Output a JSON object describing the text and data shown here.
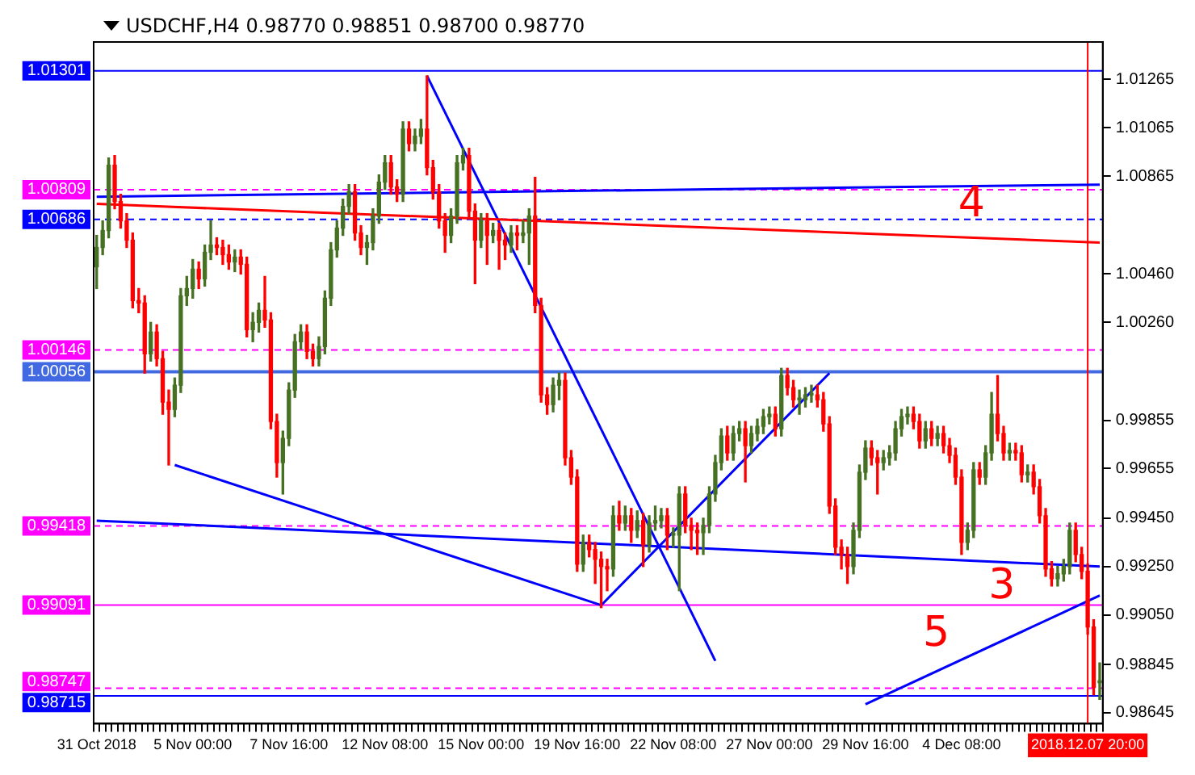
{
  "chart_data": {
    "type": "candlestick",
    "title": "USDCHF,H4  0.98770 0.98851 0.98700 0.98770",
    "categories": [
      "31 Oct 2018",
      null,
      null,
      null,
      null,
      null,
      null,
      null,
      null,
      null,
      null,
      null,
      null,
      null,
      null,
      null,
      "5 Nov 00:00",
      null,
      null,
      null,
      null,
      null,
      null,
      null,
      null,
      null,
      null,
      null,
      null,
      null,
      null,
      null,
      "7 Nov 16:00",
      null,
      null,
      null,
      null,
      null,
      null,
      null,
      null,
      null,
      null,
      null,
      null,
      null,
      null,
      null,
      "12 Nov 08:00",
      null,
      null,
      null,
      null,
      null,
      null,
      null,
      null,
      null,
      null,
      null,
      null,
      null,
      null,
      null,
      "15 Nov 00:00",
      null,
      null,
      null,
      null,
      null,
      null,
      null,
      null,
      null,
      null,
      null,
      null,
      null,
      null,
      null,
      "19 Nov 16:00",
      null,
      null,
      null,
      null,
      null,
      null,
      null,
      null,
      null,
      null,
      null,
      null,
      null,
      null,
      null,
      "22 Nov 08:00",
      null,
      null,
      null,
      null,
      null,
      null,
      null,
      null,
      null,
      null,
      null,
      null,
      null,
      null,
      null,
      "27 Nov 00:00",
      null,
      null,
      null,
      null,
      null,
      null,
      null,
      null,
      null,
      null,
      null,
      null,
      null,
      null,
      null,
      "29 Nov 16:00",
      null,
      null,
      null,
      null,
      null,
      null,
      null,
      null,
      null,
      null,
      null,
      null,
      null,
      null,
      null,
      "4 Dec 08:00",
      null,
      null,
      null,
      null,
      null,
      null,
      null,
      null,
      null,
      null,
      null,
      null,
      null,
      null,
      null,
      null,
      null,
      null,
      null,
      null,
      "2018.12.07 20:00",
      null,
      null
    ],
    "ohlc": [
      [
        1.0049,
        1.0062,
        1.004,
        1.0057
      ],
      [
        1.0057,
        1.0068,
        1.0054,
        1.0064
      ],
      [
        1.0064,
        1.0094,
        1.0061,
        1.0091
      ],
      [
        1.0091,
        1.0095,
        1.0073,
        1.0076
      ],
      [
        1.0076,
        1.0079,
        1.0065,
        1.0068
      ],
      [
        1.0068,
        1.0071,
        1.0057,
        1.006
      ],
      [
        1.006,
        1.0063,
        1.0032,
        1.0035
      ],
      [
        1.0035,
        1.004,
        1.003,
        1.0034
      ],
      [
        1.0034,
        1.0037,
        1.0005,
        1.0013
      ],
      [
        1.0013,
        1.0026,
        1.001,
        1.0022
      ],
      [
        1.0022,
        1.0025,
        1.0008,
        1.0011
      ],
      [
        1.0011,
        1.0014,
        0.9988,
        0.9993
      ],
      [
        0.9993,
        0.9998,
        0.9967,
        0.999
      ],
      [
        0.999,
        1.0003,
        0.9987,
        1.0
      ],
      [
        1.0,
        1.004,
        0.9997,
        1.0037
      ],
      [
        1.0037,
        1.0045,
        1.0033,
        1.004
      ],
      [
        1.004,
        1.0052,
        1.0036,
        1.0048
      ],
      [
        1.0048,
        1.0051,
        1.004,
        1.0044
      ],
      [
        1.0044,
        1.0058,
        1.0041,
        1.0055
      ],
      [
        1.0055,
        1.0068,
        1.0052,
        1.0058
      ],
      [
        1.0058,
        1.0061,
        1.0054,
        1.0057
      ],
      [
        1.0057,
        1.006,
        1.005,
        1.0054
      ],
      [
        1.0054,
        1.0058,
        1.0048,
        1.0051
      ],
      [
        1.0051,
        1.0056,
        1.0047,
        1.0053
      ],
      [
        1.0053,
        1.0056,
        1.0046,
        1.005
      ],
      [
        1.005,
        1.0053,
        1.002,
        1.0023
      ],
      [
        1.0023,
        1.003,
        1.0018,
        1.0026
      ],
      [
        1.0026,
        1.0034,
        1.0022,
        1.0031
      ],
      [
        1.0031,
        1.0045,
        1.0024,
        1.0027
      ],
      [
        1.0027,
        1.003,
        0.9982,
        0.9985
      ],
      [
        0.9985,
        0.9988,
        0.9962,
        0.9968
      ],
      [
        0.9968,
        0.9981,
        0.9955,
        0.9978
      ],
      [
        0.9978,
        1.0001,
        0.9975,
        0.9998
      ],
      [
        0.9998,
        1.0021,
        0.9995,
        1.0018
      ],
      [
        1.0018,
        1.0025,
        1.0015,
        1.0022
      ],
      [
        1.0022,
        1.0025,
        1.0011,
        1.0014
      ],
      [
        1.0014,
        1.0017,
        1.0008,
        1.0011
      ],
      [
        1.0011,
        1.002,
        1.0008,
        1.0016
      ],
      [
        1.0016,
        1.0039,
        1.0013,
        1.0036
      ],
      [
        1.0036,
        1.0059,
        1.0033,
        1.0056
      ],
      [
        1.0056,
        1.0068,
        1.0053,
        1.0065
      ],
      [
        1.0065,
        1.0077,
        1.0062,
        1.0074
      ],
      [
        1.0074,
        1.0083,
        1.0071,
        1.008
      ],
      [
        1.008,
        1.0083,
        1.006,
        1.0063
      ],
      [
        1.0063,
        1.0066,
        1.0054,
        1.0057
      ],
      [
        1.0057,
        1.0062,
        1.005,
        1.0059
      ],
      [
        1.0059,
        1.0073,
        1.0056,
        1.007
      ],
      [
        1.007,
        1.0087,
        1.0067,
        1.0084
      ],
      [
        1.0084,
        1.0095,
        1.0081,
        1.0092
      ],
      [
        1.0092,
        1.0095,
        1.0079,
        1.0082
      ],
      [
        1.0082,
        1.0085,
        1.0076,
        1.0079
      ],
      [
        1.0079,
        1.0109,
        1.0076,
        1.0106
      ],
      [
        1.0106,
        1.0109,
        1.0097,
        1.01
      ],
      [
        1.01,
        1.0106,
        1.0097,
        1.0103
      ],
      [
        1.0103,
        1.011,
        1.01,
        1.0106
      ],
      [
        1.0106,
        1.0128,
        1.0087,
        1.009
      ],
      [
        1.009,
        1.0093,
        1.0077,
        1.008
      ],
      [
        1.008,
        1.0083,
        1.0065,
        1.0068
      ],
      [
        1.0068,
        1.0071,
        1.0055,
        1.0062
      ],
      [
        1.0062,
        1.0073,
        1.0059,
        1.007
      ],
      [
        1.007,
        1.0095,
        1.0067,
        1.0092
      ],
      [
        1.0092,
        1.0098,
        1.0089,
        1.0095
      ],
      [
        1.0095,
        1.0098,
        1.0069,
        1.0072
      ],
      [
        1.0072,
        1.0075,
        1.0042,
        1.006
      ],
      [
        1.006,
        1.0071,
        1.0057,
        1.0068
      ],
      [
        1.0068,
        1.0071,
        1.005,
        1.0062
      ],
      [
        1.0062,
        1.0067,
        1.0059,
        1.0064
      ],
      [
        1.0064,
        1.0067,
        1.0048,
        1.006
      ],
      [
        1.006,
        1.0063,
        1.0052,
        1.0058
      ],
      [
        1.0058,
        1.0066,
        1.0055,
        1.0063
      ],
      [
        1.0063,
        1.0066,
        1.0056,
        1.0062
      ],
      [
        1.0062,
        1.0068,
        1.0059,
        1.0063
      ],
      [
        1.0063,
        1.0073,
        1.005,
        1.007
      ],
      [
        1.007,
        1.0086,
        1.003,
        1.0033
      ],
      [
        1.0033,
        1.0036,
        0.9993,
        0.9996
      ],
      [
        0.9996,
        0.9999,
        0.9988,
        0.9992
      ],
      [
        0.9992,
        1.0003,
        0.9989,
        1.0
      ],
      [
        1.0,
        1.0005,
        0.9994,
        1.0002
      ],
      [
        1.0002,
        1.0005,
        0.9967,
        0.997
      ],
      [
        0.997,
        0.9973,
        0.9959,
        0.9962
      ],
      [
        0.9962,
        0.9965,
        0.9923,
        0.9926
      ],
      [
        0.9926,
        0.9938,
        0.9923,
        0.9935
      ],
      [
        0.9935,
        0.9938,
        0.9929,
        0.9932
      ],
      [
        0.9932,
        0.9935,
        0.9918,
        0.9928
      ],
      [
        0.9928,
        0.9931,
        0.9908,
        0.9925
      ],
      [
        0.9925,
        0.9928,
        0.9915,
        0.9924
      ],
      [
        0.9924,
        0.995,
        0.9921,
        0.9946
      ],
      [
        0.9946,
        0.9952,
        0.994,
        0.9943
      ],
      [
        0.9943,
        0.995,
        0.994,
        0.9946
      ],
      [
        0.9946,
        0.9949,
        0.9935,
        0.994
      ],
      [
        0.994,
        0.9948,
        0.9937,
        0.9944
      ],
      [
        0.9944,
        0.9947,
        0.9925,
        0.9934
      ],
      [
        0.9934,
        0.9946,
        0.9931,
        0.9943
      ],
      [
        0.9943,
        0.995,
        0.994,
        0.9944
      ],
      [
        0.9944,
        0.9949,
        0.9941,
        0.9946
      ],
      [
        0.9946,
        0.9949,
        0.9932,
        0.9938
      ],
      [
        0.9938,
        0.9941,
        0.9933,
        0.9938
      ],
      [
        0.9938,
        0.9958,
        0.9915,
        0.9955
      ],
      [
        0.9955,
        0.9958,
        0.9939,
        0.9942
      ],
      [
        0.9942,
        0.9945,
        0.9932,
        0.994
      ],
      [
        0.994,
        0.9943,
        0.993,
        0.9939
      ],
      [
        0.9939,
        0.9945,
        0.993,
        0.9942
      ],
      [
        0.9942,
        0.9958,
        0.9939,
        0.9955
      ],
      [
        0.9955,
        0.9971,
        0.9952,
        0.9968
      ],
      [
        0.9968,
        0.9982,
        0.9965,
        0.9979
      ],
      [
        0.9979,
        0.9983,
        0.9969,
        0.9972
      ],
      [
        0.9972,
        0.9983,
        0.9969,
        0.998
      ],
      [
        0.998,
        0.9985,
        0.9977,
        0.9982
      ],
      [
        0.9982,
        0.9985,
        0.996,
        0.9975
      ],
      [
        0.9975,
        0.9983,
        0.9972,
        0.998
      ],
      [
        0.998,
        0.9986,
        0.9977,
        0.9983
      ],
      [
        0.9983,
        0.999,
        0.998,
        0.9987
      ],
      [
        0.9987,
        0.9991,
        0.9984,
        0.9988
      ],
      [
        0.9988,
        0.9991,
        0.9979,
        0.9982
      ],
      [
        0.9982,
        1.0007,
        0.9979,
        1.0004
      ],
      [
        1.0004,
        1.0007,
        0.9996,
        0.9999
      ],
      [
        0.9999,
        1.0002,
        0.9991,
        0.9994
      ],
      [
        0.9994,
        0.9998,
        0.9988,
        0.9994
      ],
      [
        0.9994,
        0.9999,
        0.9991,
        0.9996
      ],
      [
        0.9996,
        1.0,
        0.9993,
        0.9996
      ],
      [
        0.9996,
        1.0,
        0.9991,
        0.9994
      ],
      [
        0.9994,
        0.9997,
        0.9981,
        0.9984
      ],
      [
        0.9984,
        0.9987,
        0.9947,
        0.995
      ],
      [
        0.995,
        0.9953,
        0.993,
        0.9933
      ],
      [
        0.9933,
        0.9936,
        0.9924,
        0.993
      ],
      [
        0.993,
        0.9933,
        0.9918,
        0.9925
      ],
      [
        0.9925,
        0.9943,
        0.9922,
        0.994
      ],
      [
        0.994,
        0.9967,
        0.9937,
        0.9964
      ],
      [
        0.9964,
        0.9977,
        0.9961,
        0.9974
      ],
      [
        0.9974,
        0.9977,
        0.9967,
        0.997
      ],
      [
        0.997,
        0.9973,
        0.9955,
        0.9968
      ],
      [
        0.9968,
        0.9973,
        0.9965,
        0.997
      ],
      [
        0.997,
        0.9975,
        0.9967,
        0.9972
      ],
      [
        0.9972,
        0.9985,
        0.9969,
        0.9982
      ],
      [
        0.9982,
        0.999,
        0.9979,
        0.9987
      ],
      [
        0.9987,
        0.9991,
        0.9984,
        0.9988
      ],
      [
        0.9988,
        0.9991,
        0.9982,
        0.9985
      ],
      [
        0.9985,
        0.9988,
        0.9974,
        0.9977
      ],
      [
        0.9977,
        0.9985,
        0.9974,
        0.9982
      ],
      [
        0.9982,
        0.9985,
        0.9975,
        0.9978
      ],
      [
        0.9978,
        0.9983,
        0.9975,
        0.998
      ],
      [
        0.998,
        0.9983,
        0.9972,
        0.9975
      ],
      [
        0.9975,
        0.9978,
        0.9968,
        0.9971
      ],
      [
        0.9971,
        0.9974,
        0.9959,
        0.9962
      ],
      [
        0.9962,
        0.9965,
        0.993,
        0.9935
      ],
      [
        0.9935,
        0.9943,
        0.9932,
        0.994
      ],
      [
        0.994,
        0.9968,
        0.9937,
        0.9965
      ],
      [
        0.9965,
        0.9968,
        0.9959,
        0.9962
      ],
      [
        0.9962,
        0.9975,
        0.9959,
        0.9972
      ],
      [
        0.9972,
        0.9997,
        0.9969,
        0.9988
      ],
      [
        0.9988,
        1.0004,
        0.9977,
        0.998
      ],
      [
        0.998,
        0.9983,
        0.9969,
        0.9972
      ],
      [
        0.9972,
        0.9976,
        0.9969,
        0.9973
      ],
      [
        0.9973,
        0.9976,
        0.9969,
        0.9972
      ],
      [
        0.9972,
        0.9975,
        0.996,
        0.9963
      ],
      [
        0.9963,
        0.9967,
        0.996,
        0.9964
      ],
      [
        0.9964,
        0.9967,
        0.9955,
        0.9958
      ],
      [
        0.9958,
        0.9961,
        0.9943,
        0.9946
      ],
      [
        0.9946,
        0.9949,
        0.9921,
        0.9924
      ],
      [
        0.9924,
        0.9927,
        0.9917,
        0.992
      ],
      [
        0.992,
        0.9925,
        0.9917,
        0.9922
      ],
      [
        0.9922,
        0.9928,
        0.9919,
        0.9925
      ],
      [
        0.9925,
        0.9943,
        0.9922,
        0.994
      ],
      [
        0.994,
        0.9943,
        0.9927,
        0.993
      ],
      [
        0.993,
        0.9933,
        0.992,
        0.9923
      ],
      [
        0.9923,
        0.9926,
        0.9897,
        0.99
      ],
      [
        0.99,
        0.9903,
        0.9872,
        0.9875
      ],
      [
        0.9877,
        0.98851,
        0.987,
        0.9877
      ]
    ],
    "series": [
      {
        "type": "line",
        "color": "#0000ff",
        "values": [
          1.0078,
          null,
          null,
          null,
          null,
          null,
          null,
          null,
          null,
          null,
          null,
          null,
          null,
          null,
          null,
          null,
          null,
          null,
          null,
          null,
          null,
          null,
          null,
          null,
          null,
          null,
          null,
          null,
          null,
          null,
          null,
          null,
          null,
          null,
          null,
          null,
          null,
          null,
          null,
          null,
          null,
          null,
          null,
          null,
          null,
          null,
          null,
          null,
          null,
          null,
          null,
          null,
          null,
          null,
          null,
          null,
          null,
          null,
          null,
          null,
          null,
          null,
          null,
          null,
          null,
          null,
          null,
          null,
          null,
          null,
          null,
          null,
          null,
          null,
          null,
          null,
          null,
          null,
          null,
          null,
          null,
          null,
          null,
          null,
          null,
          null,
          null,
          null,
          null,
          null,
          null,
          null,
          null,
          null,
          null,
          null,
          null,
          null,
          null,
          null,
          null,
          null,
          null,
          null,
          null,
          null,
          null,
          null,
          null,
          null,
          null,
          null,
          null,
          null,
          null,
          null,
          null,
          null,
          null,
          null,
          null,
          null,
          null,
          null,
          null,
          null,
          null,
          null,
          null,
          null,
          null,
          null,
          null,
          null,
          null,
          null,
          null,
          null,
          null,
          null,
          null,
          null,
          null,
          null,
          null,
          null,
          null,
          null,
          null,
          null,
          null,
          null,
          null,
          null,
          null,
          null,
          null,
          null,
          null,
          null,
          null,
          null,
          null,
          null,
          null,
          null,
          null,
          1.0083
        ]
      },
      {
        "type": "line",
        "color": "#ff0000",
        "values": [
          1.0075,
          null,
          null,
          null,
          null,
          null,
          null,
          null,
          null,
          null,
          null,
          null,
          null,
          null,
          null,
          null,
          null,
          null,
          null,
          null,
          null,
          null,
          null,
          null,
          null,
          null,
          null,
          null,
          null,
          null,
          null,
          null,
          null,
          null,
          null,
          null,
          null,
          null,
          null,
          null,
          null,
          null,
          null,
          null,
          null,
          null,
          null,
          null,
          null,
          null,
          null,
          null,
          null,
          null,
          null,
          null,
          null,
          null,
          null,
          null,
          null,
          null,
          null,
          null,
          null,
          null,
          null,
          null,
          null,
          null,
          null,
          null,
          null,
          null,
          null,
          null,
          null,
          null,
          null,
          null,
          null,
          null,
          null,
          null,
          null,
          null,
          null,
          null,
          null,
          null,
          null,
          null,
          null,
          null,
          null,
          null,
          null,
          null,
          null,
          null,
          null,
          null,
          null,
          null,
          null,
          null,
          null,
          null,
          null,
          null,
          null,
          null,
          null,
          null,
          null,
          null,
          null,
          null,
          null,
          null,
          null,
          null,
          null,
          null,
          null,
          null,
          null,
          null,
          null,
          null,
          null,
          null,
          null,
          null,
          null,
          null,
          null,
          null,
          null,
          null,
          null,
          null,
          null,
          null,
          null,
          null,
          null,
          null,
          null,
          null,
          null,
          null,
          null,
          null,
          null,
          null,
          null,
          null,
          null,
          null,
          null,
          null,
          null,
          null,
          null,
          null,
          null,
          1.0059
        ]
      },
      {
        "type": "line",
        "color": "#0000ff",
        "values": [
          0.9944,
          null,
          null,
          null,
          null,
          null,
          null,
          null,
          null,
          null,
          null,
          null,
          null,
          null,
          null,
          null,
          null,
          null,
          null,
          null,
          null,
          null,
          null,
          null,
          null,
          null,
          null,
          null,
          null,
          null,
          null,
          null,
          null,
          null,
          null,
          null,
          null,
          null,
          null,
          null,
          null,
          null,
          null,
          null,
          null,
          null,
          null,
          null,
          null,
          null,
          null,
          null,
          null,
          null,
          null,
          null,
          null,
          null,
          null,
          null,
          null,
          null,
          null,
          null,
          null,
          null,
          null,
          null,
          null,
          null,
          null,
          null,
          null,
          null,
          null,
          null,
          null,
          null,
          null,
          null,
          null,
          null,
          null,
          null,
          null,
          null,
          null,
          null,
          null,
          null,
          null,
          null,
          null,
          null,
          null,
          null,
          null,
          null,
          null,
          null,
          null,
          null,
          null,
          null,
          null,
          null,
          null,
          null,
          null,
          null,
          null,
          null,
          null,
          null,
          null,
          null,
          null,
          null,
          null,
          null,
          null,
          null,
          null,
          null,
          null,
          null,
          null,
          null,
          null,
          null,
          null,
          null,
          null,
          null,
          null,
          null,
          null,
          null,
          null,
          null,
          null,
          null,
          null,
          null,
          null,
          null,
          null,
          null,
          null,
          null,
          null,
          null,
          null,
          null,
          null,
          null,
          null,
          null,
          null,
          null,
          null,
          null,
          null,
          null,
          null,
          null,
          null,
          0.9925
        ]
      },
      {
        "type": "line",
        "color": "#0000ff",
        "values": [
          null,
          null,
          null,
          null,
          null,
          null,
          null,
          null,
          null,
          null,
          null,
          null,
          null,
          null,
          null,
          null,
          null,
          null,
          null,
          null,
          null,
          null,
          null,
          null,
          null,
          null,
          null,
          null,
          null,
          null,
          null,
          null,
          null,
          null,
          null,
          null,
          null,
          null,
          null,
          null,
          null,
          null,
          null,
          null,
          null,
          null,
          null,
          null,
          null,
          null,
          null,
          null,
          null,
          null,
          null,
          1.0128,
          null,
          null,
          null,
          null,
          null,
          null,
          null,
          null,
          null,
          null,
          null,
          null,
          null,
          null,
          null,
          null,
          null,
          null,
          null,
          null,
          null,
          null,
          null,
          null,
          null,
          null,
          null,
          null,
          null,
          null,
          null,
          null,
          null,
          null,
          null,
          null,
          null,
          null,
          null,
          null,
          null,
          null,
          null,
          null,
          null,
          null,
          null,
          0.9886,
          null,
          null,
          null,
          null,
          null,
          null,
          null,
          null,
          null,
          null,
          null,
          null,
          null,
          null,
          null,
          null,
          null,
          null,
          null,
          null,
          null,
          null,
          null,
          null,
          null,
          null,
          null,
          null,
          null,
          null,
          null,
          null,
          null,
          null,
          null,
          null,
          null,
          null,
          null,
          null,
          null,
          null,
          null,
          null,
          null,
          null,
          null,
          null,
          null,
          null,
          null,
          null,
          null,
          null,
          null,
          null,
          null,
          null,
          null,
          null,
          null,
          null,
          null,
          null
        ]
      },
      {
        "type": "line",
        "color": "#0000ff",
        "values": [
          null,
          null,
          null,
          null,
          null,
          null,
          null,
          null,
          null,
          null,
          null,
          null,
          null,
          0.9967,
          null,
          null,
          null,
          null,
          null,
          null,
          null,
          null,
          null,
          null,
          null,
          null,
          null,
          null,
          null,
          null,
          null,
          null,
          null,
          null,
          null,
          null,
          null,
          null,
          null,
          null,
          null,
          null,
          null,
          null,
          null,
          null,
          null,
          null,
          null,
          null,
          null,
          null,
          null,
          null,
          null,
          null,
          null,
          null,
          null,
          null,
          null,
          null,
          null,
          null,
          null,
          null,
          null,
          null,
          null,
          null,
          null,
          null,
          null,
          null,
          null,
          null,
          null,
          null,
          null,
          null,
          null,
          null,
          null,
          null,
          0.9909,
          null,
          null,
          null,
          null,
          null,
          null,
          null,
          null,
          null,
          null,
          null,
          null,
          null,
          null,
          null,
          null,
          null,
          null,
          null,
          null,
          null,
          null,
          null,
          null,
          null,
          null,
          null,
          null,
          null,
          null,
          null,
          null,
          null,
          null,
          null,
          null,
          null,
          1.0005,
          null,
          null,
          null,
          null,
          null,
          null,
          null,
          null,
          null,
          null,
          null,
          null,
          null,
          null,
          null,
          null,
          null,
          null,
          null,
          null,
          null,
          null,
          null,
          null,
          null,
          null,
          null,
          null,
          null,
          null,
          null,
          null,
          null,
          null,
          null,
          null,
          null,
          null,
          null,
          null,
          null,
          null,
          null,
          null,
          null
        ]
      },
      {
        "type": "line",
        "color": "#0000ff",
        "values": [
          null,
          null,
          null,
          null,
          null,
          null,
          null,
          null,
          null,
          null,
          null,
          null,
          null,
          null,
          null,
          null,
          null,
          null,
          null,
          null,
          null,
          null,
          null,
          null,
          null,
          null,
          null,
          null,
          null,
          null,
          null,
          null,
          null,
          null,
          null,
          null,
          null,
          null,
          null,
          null,
          null,
          null,
          null,
          null,
          null,
          null,
          null,
          null,
          null,
          null,
          null,
          null,
          null,
          null,
          null,
          null,
          null,
          null,
          null,
          null,
          null,
          null,
          null,
          null,
          null,
          null,
          null,
          null,
          null,
          null,
          null,
          null,
          null,
          null,
          null,
          null,
          null,
          null,
          null,
          null,
          null,
          null,
          null,
          null,
          null,
          null,
          null,
          null,
          null,
          null,
          null,
          null,
          null,
          null,
          null,
          null,
          null,
          null,
          null,
          null,
          null,
          null,
          null,
          null,
          null,
          null,
          null,
          null,
          null,
          null,
          null,
          null,
          null,
          null,
          null,
          null,
          null,
          null,
          null,
          null,
          null,
          null,
          null,
          null,
          null,
          null,
          null,
          null,
          0.9868,
          null,
          null,
          null,
          null,
          null,
          null,
          null,
          null,
          null,
          null,
          null,
          null,
          null,
          null,
          null,
          null,
          null,
          null,
          null,
          null,
          null,
          null,
          null,
          null,
          null,
          null,
          null,
          null,
          null,
          null,
          null,
          null,
          null,
          null,
          null,
          null,
          null,
          null,
          0.9913
        ]
      }
    ],
    "ylim": [
      0.986,
      1.0142
    ],
    "yticks": [
      1.01265,
      1.01065,
      1.00865,
      {
        "value": 1.0046,
        "label": "1.00460"
      },
      {
        "value": 1.0026,
        "label": "1.00260"
      },
      0.99855,
      0.99655,
      {
        "value": 0.9945,
        "label": "0.99450"
      },
      {
        "value": 0.9925,
        "label": "0.99250"
      },
      {
        "value": 0.9905,
        "label": "0.99050"
      },
      0.98845,
      0.98645
    ],
    "ref_lines": [
      {
        "axis": "y",
        "value": 1.01301,
        "label": "1.01301",
        "color": "#0000ff",
        "line_style": "solid"
      },
      {
        "axis": "y",
        "value": 1.00809,
        "label": "1.00809",
        "color": "#ff00ff",
        "line_style": "dashed"
      },
      {
        "axis": "y",
        "value": 1.00686,
        "label": "1.00686",
        "color": "#0000ff",
        "line_style": "dashed"
      },
      {
        "axis": "y",
        "value": 1.00146,
        "label": "1.00146",
        "color": "#ff00ff",
        "line_style": "dashed"
      },
      {
        "axis": "y",
        "value": 1.00056,
        "label": "1.00056",
        "color": "#4169e1",
        "line_style": "solid"
      },
      {
        "axis": "y",
        "value": 0.99418,
        "label": "0.99418",
        "color": "#ff00ff",
        "line_style": "dashed"
      },
      {
        "axis": "y",
        "value": 0.99091,
        "label": "0.99091",
        "color": "#ff00ff",
        "line_style": "solid"
      },
      {
        "axis": "y",
        "value": 0.98747,
        "label": "0.98747",
        "color": "#ff00ff",
        "line_style": "dashed"
      },
      {
        "axis": "y",
        "value": 0.98715,
        "label": "0.98715",
        "color": "#0000ff",
        "line_style": "solid"
      },
      {
        "axis": "x",
        "value": "2018.12.07 20:00",
        "color": "#ff0000",
        "line_style": "solid"
      }
    ],
    "annotations": [
      "4",
      "5",
      "3"
    ],
    "legend": false
  }
}
